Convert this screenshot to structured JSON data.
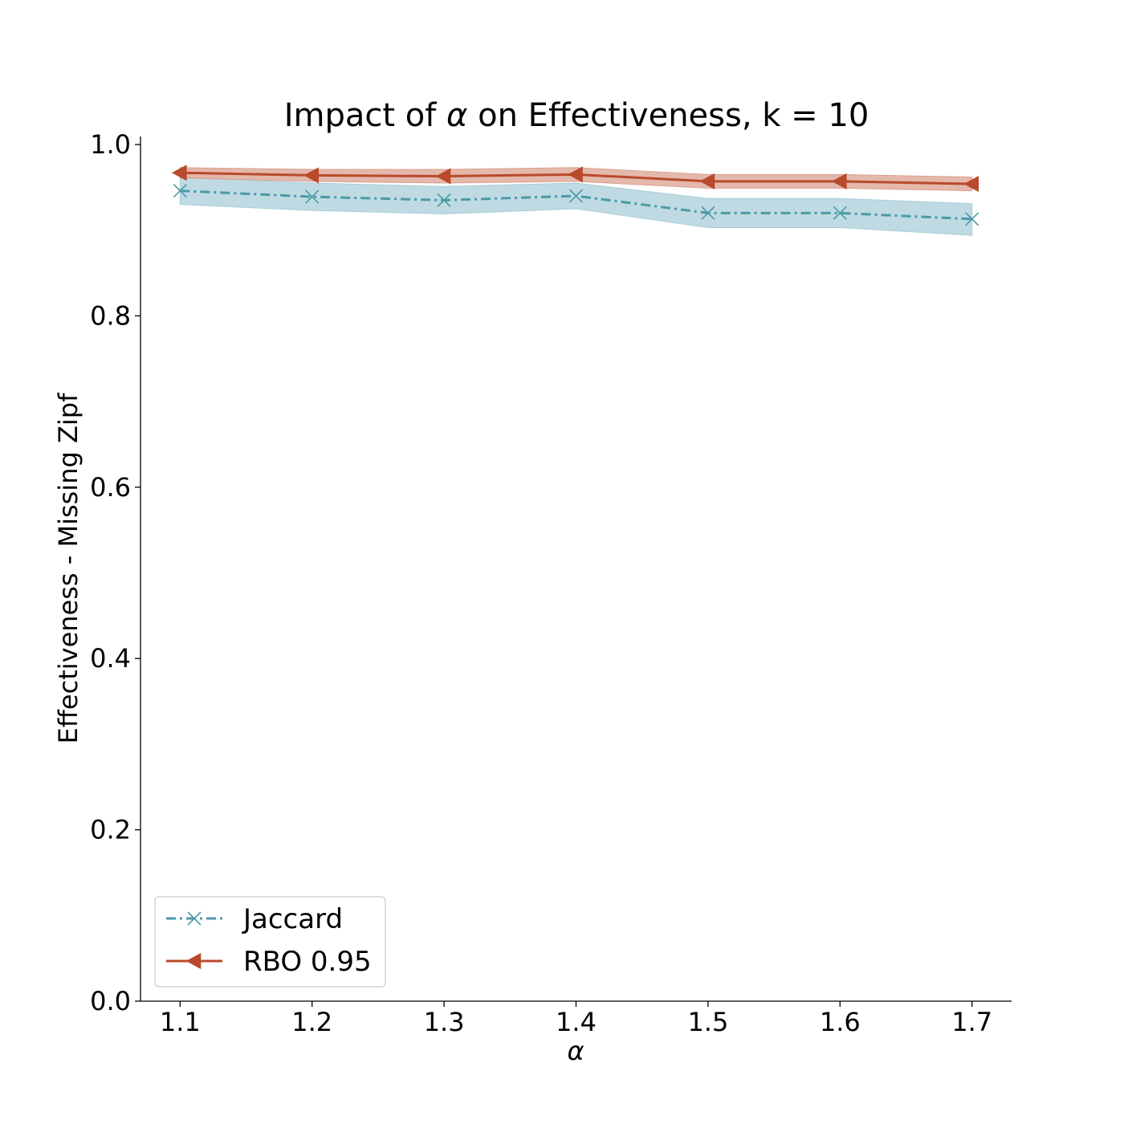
{
  "chart_data": {
    "type": "line",
    "title": "Impact of α on Effectiveness, k = 10",
    "title_parts": [
      "Impact of ",
      "α",
      " on Effectiveness, k = 10"
    ],
    "xlabel": "α",
    "ylabel": "Effectiveness - Missing Zipf",
    "x": [
      1.1,
      1.2,
      1.3,
      1.4,
      1.5,
      1.6,
      1.7
    ],
    "x_tick_labels": [
      "1.1",
      "1.2",
      "1.3",
      "1.4",
      "1.5",
      "1.6",
      "1.7"
    ],
    "y_ticks": [
      0.0,
      0.2,
      0.4,
      0.6,
      0.8,
      1.0
    ],
    "y_tick_labels": [
      "0.0",
      "0.2",
      "0.4",
      "0.6",
      "0.8",
      "1.0"
    ],
    "xlim": [
      1.07,
      1.73
    ],
    "ylim": [
      0.0,
      1.0
    ],
    "grid": false,
    "legend_position": "lower-left",
    "series": [
      {
        "name": "Jaccard",
        "values": [
          0.946,
          0.939,
          0.935,
          0.94,
          0.92,
          0.92,
          0.913
        ],
        "band_lower": [
          0.93,
          0.923,
          0.919,
          0.925,
          0.903,
          0.903,
          0.894
        ],
        "band_upper": [
          0.962,
          0.955,
          0.951,
          0.955,
          0.937,
          0.937,
          0.931
        ],
        "color": "#4a9aa8",
        "band_color": "#a9ced8",
        "line_style": "dash-dot",
        "marker": "x"
      },
      {
        "name": "RBO 0.95",
        "values": [
          0.967,
          0.964,
          0.963,
          0.965,
          0.957,
          0.957,
          0.954
        ],
        "band_lower": [
          0.961,
          0.957,
          0.955,
          0.957,
          0.949,
          0.949,
          0.946
        ],
        "band_upper": [
          0.973,
          0.971,
          0.971,
          0.973,
          0.965,
          0.965,
          0.962
        ],
        "color": "#b94a2c",
        "band_color": "#dba08f",
        "line_style": "solid",
        "marker": "triangle-left"
      }
    ]
  }
}
